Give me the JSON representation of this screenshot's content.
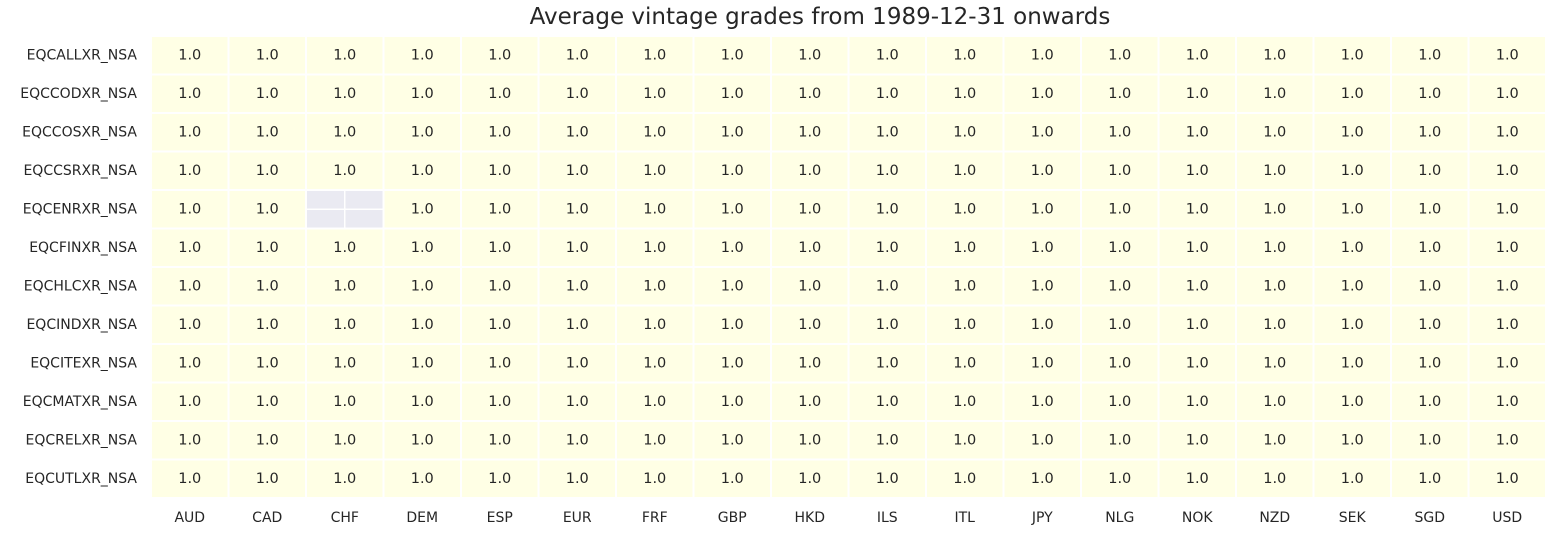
{
  "chart_data": {
    "type": "heatmap",
    "title": "Average vintage grades from 1989-12-31 onwards",
    "x_labels": [
      "AUD",
      "CAD",
      "CHF",
      "DEM",
      "ESP",
      "EUR",
      "FRF",
      "GBP",
      "HKD",
      "ILS",
      "ITL",
      "JPY",
      "NLG",
      "NOK",
      "NZD",
      "SEK",
      "SGD",
      "USD"
    ],
    "y_labels": [
      "EQCALLXR_NSA",
      "EQCCODXR_NSA",
      "EQCCOSXR_NSA",
      "EQCCSRXR_NSA",
      "EQCENRXR_NSA",
      "EQCFINXR_NSA",
      "EQCHLCXR_NSA",
      "EQCINDXR_NSA",
      "EQCITEXR_NSA",
      "EQCMATXR_NSA",
      "EQCRELXR_NSA",
      "EQCUTLXR_NSA"
    ],
    "values": [
      [
        1.0,
        1.0,
        1.0,
        1.0,
        1.0,
        1.0,
        1.0,
        1.0,
        1.0,
        1.0,
        1.0,
        1.0,
        1.0,
        1.0,
        1.0,
        1.0,
        1.0,
        1.0
      ],
      [
        1.0,
        1.0,
        1.0,
        1.0,
        1.0,
        1.0,
        1.0,
        1.0,
        1.0,
        1.0,
        1.0,
        1.0,
        1.0,
        1.0,
        1.0,
        1.0,
        1.0,
        1.0
      ],
      [
        1.0,
        1.0,
        1.0,
        1.0,
        1.0,
        1.0,
        1.0,
        1.0,
        1.0,
        1.0,
        1.0,
        1.0,
        1.0,
        1.0,
        1.0,
        1.0,
        1.0,
        1.0
      ],
      [
        1.0,
        1.0,
        1.0,
        1.0,
        1.0,
        1.0,
        1.0,
        1.0,
        1.0,
        1.0,
        1.0,
        1.0,
        1.0,
        1.0,
        1.0,
        1.0,
        1.0,
        1.0
      ],
      [
        1.0,
        1.0,
        null,
        1.0,
        1.0,
        1.0,
        1.0,
        1.0,
        1.0,
        1.0,
        1.0,
        1.0,
        1.0,
        1.0,
        1.0,
        1.0,
        1.0,
        1.0
      ],
      [
        1.0,
        1.0,
        1.0,
        1.0,
        1.0,
        1.0,
        1.0,
        1.0,
        1.0,
        1.0,
        1.0,
        1.0,
        1.0,
        1.0,
        1.0,
        1.0,
        1.0,
        1.0
      ],
      [
        1.0,
        1.0,
        1.0,
        1.0,
        1.0,
        1.0,
        1.0,
        1.0,
        1.0,
        1.0,
        1.0,
        1.0,
        1.0,
        1.0,
        1.0,
        1.0,
        1.0,
        1.0
      ],
      [
        1.0,
        1.0,
        1.0,
        1.0,
        1.0,
        1.0,
        1.0,
        1.0,
        1.0,
        1.0,
        1.0,
        1.0,
        1.0,
        1.0,
        1.0,
        1.0,
        1.0,
        1.0
      ],
      [
        1.0,
        1.0,
        1.0,
        1.0,
        1.0,
        1.0,
        1.0,
        1.0,
        1.0,
        1.0,
        1.0,
        1.0,
        1.0,
        1.0,
        1.0,
        1.0,
        1.0,
        1.0
      ],
      [
        1.0,
        1.0,
        1.0,
        1.0,
        1.0,
        1.0,
        1.0,
        1.0,
        1.0,
        1.0,
        1.0,
        1.0,
        1.0,
        1.0,
        1.0,
        1.0,
        1.0,
        1.0
      ],
      [
        1.0,
        1.0,
        1.0,
        1.0,
        1.0,
        1.0,
        1.0,
        1.0,
        1.0,
        1.0,
        1.0,
        1.0,
        1.0,
        1.0,
        1.0,
        1.0,
        1.0,
        1.0
      ],
      [
        1.0,
        1.0,
        1.0,
        1.0,
        1.0,
        1.0,
        1.0,
        1.0,
        1.0,
        1.0,
        1.0,
        1.0,
        1.0,
        1.0,
        1.0,
        1.0,
        1.0,
        1.0
      ]
    ],
    "annotation_format": "0.0",
    "colors": {
      "cell": "#FFFFE5",
      "missing": "#EAEAF2",
      "grid_line": "#FFFFFF",
      "text": "#262626"
    },
    "grid": true,
    "legend": "none"
  }
}
